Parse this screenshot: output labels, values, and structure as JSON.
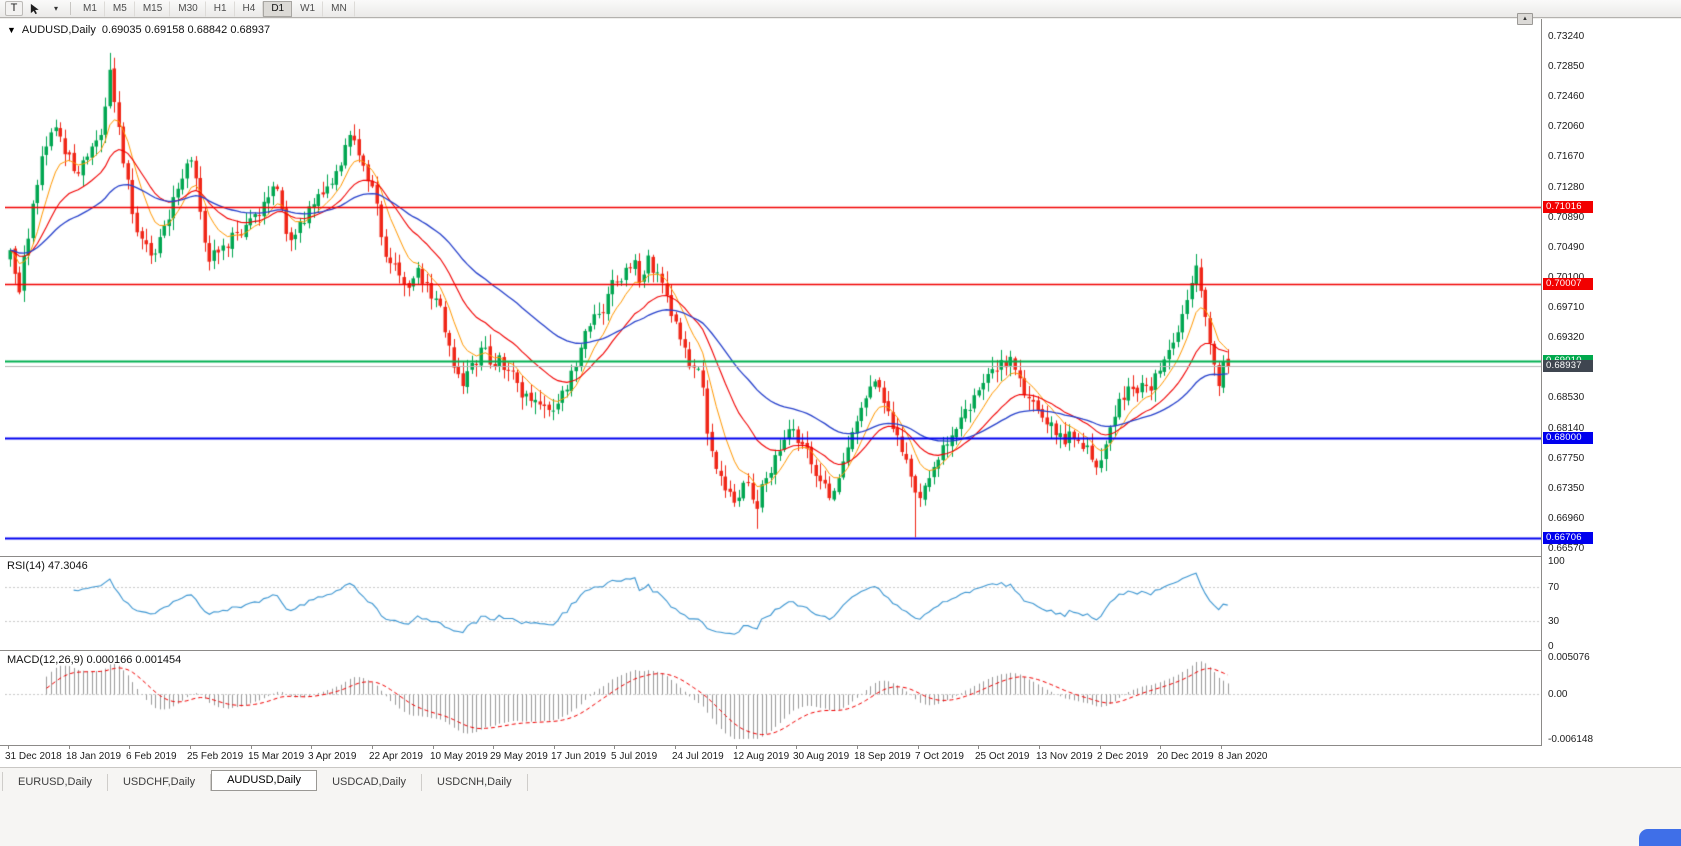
{
  "icons": {
    "chart_dropdown": "▼",
    "scroll_up": "▲",
    "pointer_caret": "▾"
  },
  "toolbar": {
    "t_button": "T",
    "timeframes": [
      "M1",
      "M5",
      "M15",
      "M30",
      "H1",
      "H4",
      "D1",
      "W1",
      "MN"
    ],
    "active_timeframe": "D1"
  },
  "chart": {
    "symbol_period": "AUDUSD,Daily",
    "ohlc": "0.69035 0.69158 0.68842 0.68937",
    "open": "0.69035",
    "high": "0.69158",
    "low": "0.68842",
    "close": "0.68937"
  },
  "price_axis": {
    "labels": [
      "0.73240",
      "0.72850",
      "0.72460",
      "0.72060",
      "0.71670",
      "0.71280",
      "0.70890",
      "0.70490",
      "0.70100",
      "0.69710",
      "0.69320",
      "0.68930",
      "0.68530",
      "0.68140",
      "0.67750",
      "0.67350",
      "0.66960",
      "0.66570"
    ],
    "max": 0.7324,
    "min": 0.6657
  },
  "levels": [
    {
      "label": "0.71016",
      "price": 0.71016,
      "line_color": "#f20000",
      "tag_color": "#f20000",
      "width": 1.4,
      "type": "resistance"
    },
    {
      "label": "0.70007",
      "price": 0.70007,
      "line_color": "#f20000",
      "tag_color": "#f20000",
      "width": 1.4,
      "type": "resistance"
    },
    {
      "label": "0.69010",
      "price": 0.6901,
      "line_color": "#00b050",
      "tag_color": "#00a84c",
      "width": 2,
      "type": "support"
    },
    {
      "label": "0.68937",
      "price": 0.68937,
      "line_color": "#b6b6b6",
      "tag_color": "#3f4650",
      "width": 1,
      "type": "current-price"
    },
    {
      "label": "0.68000",
      "price": 0.68,
      "line_color": "#0000f0",
      "tag_color": "#0000ee",
      "width": 2,
      "type": "support"
    },
    {
      "label": "0.66706",
      "price": 0.66706,
      "line_color": "#0000f0",
      "tag_color": "#0000ee",
      "width": 2,
      "type": "support"
    }
  ],
  "x_axis": [
    "31 Dec 2018",
    "18 Jan 2019",
    "6 Feb 2019",
    "25 Feb 2019",
    "15 Mar 2019",
    "3 Apr 2019",
    "22 Apr 2019",
    "10 May 2019",
    "29 May 2019",
    "17 Jun 2019",
    "5 Jul 2019",
    "24 Jul 2019",
    "12 Aug 2019",
    "30 Aug 2019",
    "18 Sep 2019",
    "7 Oct 2019",
    "25 Oct 2019",
    "13 Nov 2019",
    "2 Dec 2019",
    "20 Dec 2019",
    "8 Jan 2020"
  ],
  "rsi": {
    "header": "RSI(14) 47.3046",
    "value": "47.3046",
    "period": 14,
    "axis_labels": [
      "100",
      "70",
      "30",
      "0"
    ],
    "axis_values": [
      100,
      70,
      30,
      0
    ],
    "line_color": "#3c96d2"
  },
  "macd": {
    "header": "MACD(12,26,9) 0.000166 0.001454",
    "macd_value": "0.000166",
    "signal_value": "0.001454",
    "fast": 12,
    "slow": 26,
    "signal": 9,
    "axis_labels": [
      "0.005076",
      "0.00",
      "-0.006148"
    ],
    "max": 0.005076,
    "min": -0.006148,
    "histogram_color": "#9a9a9a",
    "signal_color": "#f20000"
  },
  "tabs": [
    {
      "label": "EURUSD,Daily",
      "active": false
    },
    {
      "label": "USDCHF,Daily",
      "active": false
    },
    {
      "label": "AUDUSD,Daily",
      "active": true
    },
    {
      "label": "USDCAD,Daily",
      "active": false
    },
    {
      "label": "USDCNH,Daily",
      "active": false
    }
  ],
  "colors": {
    "up_candle": "#00a651",
    "down_candle": "#f02618",
    "background": "#ffffff"
  },
  "chart_data": {
    "type": "candlestick",
    "symbol": "AUDUSD",
    "timeframe": "Daily",
    "bars": 270,
    "visible_price_range": [
      0.6657,
      0.7324
    ],
    "moving_averages": [
      {
        "period": 8,
        "color": "#ff9800",
        "width": 1
      },
      {
        "period": 20,
        "color": "#f20000",
        "width": 1.1
      },
      {
        "period": 45,
        "color": "#2741cc",
        "width": 1.3
      }
    ],
    "close_waypoints": [
      [
        0,
        0.7045
      ],
      [
        2,
        0.699
      ],
      [
        4,
        0.706
      ],
      [
        6,
        0.713
      ],
      [
        8,
        0.718
      ],
      [
        10,
        0.7205
      ],
      [
        12,
        0.717
      ],
      [
        14,
        0.7148
      ],
      [
        16,
        0.7162
      ],
      [
        18,
        0.718
      ],
      [
        20,
        0.7195
      ],
      [
        22,
        0.728
      ],
      [
        23,
        0.7238
      ],
      [
        25,
        0.7158
      ],
      [
        27,
        0.7092
      ],
      [
        29,
        0.706
      ],
      [
        31,
        0.7038
      ],
      [
        33,
        0.7062
      ],
      [
        35,
        0.7085
      ],
      [
        37,
        0.7125
      ],
      [
        39,
        0.7158
      ],
      [
        40,
        0.7162
      ],
      [
        42,
        0.7095
      ],
      [
        44,
        0.703
      ],
      [
        46,
        0.7042
      ],
      [
        48,
        0.7048
      ],
      [
        50,
        0.7068
      ],
      [
        52,
        0.7078
      ],
      [
        54,
        0.7092
      ],
      [
        56,
        0.7108
      ],
      [
        58,
        0.7128
      ],
      [
        60,
        0.7098
      ],
      [
        62,
        0.7058
      ],
      [
        64,
        0.7082
      ],
      [
        66,
        0.7102
      ],
      [
        68,
        0.7118
      ],
      [
        70,
        0.7128
      ],
      [
        72,
        0.7148
      ],
      [
        74,
        0.7182
      ],
      [
        76,
        0.7188
      ],
      [
        78,
        0.7155
      ],
      [
        80,
        0.7128
      ],
      [
        82,
        0.7062
      ],
      [
        84,
        0.7028
      ],
      [
        86,
        0.7012
      ],
      [
        88,
        0.6996
      ],
      [
        90,
        0.7022
      ],
      [
        92,
        0.7002
      ],
      [
        94,
        0.6982
      ],
      [
        96,
        0.6938
      ],
      [
        98,
        0.6892
      ],
      [
        100,
        0.6868
      ],
      [
        102,
        0.6898
      ],
      [
        104,
        0.6918
      ],
      [
        106,
        0.6896
      ],
      [
        108,
        0.6908
      ],
      [
        110,
        0.6888
      ],
      [
        112,
        0.6872
      ],
      [
        114,
        0.6858
      ],
      [
        116,
        0.685
      ],
      [
        118,
        0.6842
      ],
      [
        120,
        0.6836
      ],
      [
        122,
        0.6862
      ],
      [
        124,
        0.6888
      ],
      [
        126,
        0.6918
      ],
      [
        128,
        0.6946
      ],
      [
        130,
        0.6962
      ],
      [
        132,
        0.6988
      ],
      [
        134,
        0.7004
      ],
      [
        136,
        0.7022
      ],
      [
        138,
        0.7032
      ],
      [
        139,
        0.7002
      ],
      [
        141,
        0.7038
      ],
      [
        143,
        0.7016
      ],
      [
        145,
        0.6986
      ],
      [
        147,
        0.6952
      ],
      [
        149,
        0.6918
      ],
      [
        151,
        0.6892
      ],
      [
        153,
        0.6866
      ],
      [
        154,
        0.6806
      ],
      [
        156,
        0.676
      ],
      [
        158,
        0.6732
      ],
      [
        160,
        0.6716
      ],
      [
        162,
        0.6742
      ],
      [
        164,
        0.672
      ],
      [
        165,
        0.6708
      ],
      [
        167,
        0.6748
      ],
      [
        169,
        0.6778
      ],
      [
        171,
        0.6798
      ],
      [
        173,
        0.6812
      ],
      [
        175,
        0.6792
      ],
      [
        177,
        0.6766
      ],
      [
        179,
        0.6744
      ],
      [
        181,
        0.6722
      ],
      [
        183,
        0.6748
      ],
      [
        185,
        0.6788
      ],
      [
        187,
        0.6822
      ],
      [
        189,
        0.6852
      ],
      [
        191,
        0.6874
      ],
      [
        193,
        0.6846
      ],
      [
        195,
        0.6812
      ],
      [
        197,
        0.6782
      ],
      [
        199,
        0.675
      ],
      [
        201,
        0.6722
      ],
      [
        203,
        0.6748
      ],
      [
        205,
        0.6772
      ],
      [
        207,
        0.6792
      ],
      [
        209,
        0.6812
      ],
      [
        211,
        0.6838
      ],
      [
        213,
        0.6856
      ],
      [
        215,
        0.6872
      ],
      [
        217,
        0.689
      ],
      [
        219,
        0.6902
      ],
      [
        221,
        0.6906
      ],
      [
        223,
        0.6878
      ],
      [
        225,
        0.6852
      ],
      [
        227,
        0.6836
      ],
      [
        229,
        0.6818
      ],
      [
        231,
        0.6804
      ],
      [
        233,
        0.6792
      ],
      [
        235,
        0.68
      ],
      [
        237,
        0.6786
      ],
      [
        239,
        0.6772
      ],
      [
        240,
        0.6762
      ],
      [
        242,
        0.6792
      ],
      [
        244,
        0.6828
      ],
      [
        246,
        0.685
      ],
      [
        248,
        0.6864
      ],
      [
        250,
        0.6872
      ],
      [
        252,
        0.6862
      ],
      [
        254,
        0.6888
      ],
      [
        256,
        0.6915
      ],
      [
        258,
        0.6938
      ],
      [
        260,
        0.698
      ],
      [
        262,
        0.7025
      ],
      [
        263,
        0.6992
      ],
      [
        264,
        0.6958
      ],
      [
        265,
        0.6924
      ],
      [
        266,
        0.6896
      ],
      [
        267,
        0.6868
      ],
      [
        268,
        0.69
      ],
      [
        269,
        0.68937
      ]
    ],
    "overrides": {
      "22": {
        "h": 0.7302
      },
      "165": {
        "l": 0.6682
      },
      "200": {
        "l": 0.6671
      },
      "262": {
        "h": 0.704
      },
      "269": {
        "o": 0.69035,
        "h": 0.69158,
        "l": 0.68842,
        "c": 0.68937
      }
    }
  }
}
